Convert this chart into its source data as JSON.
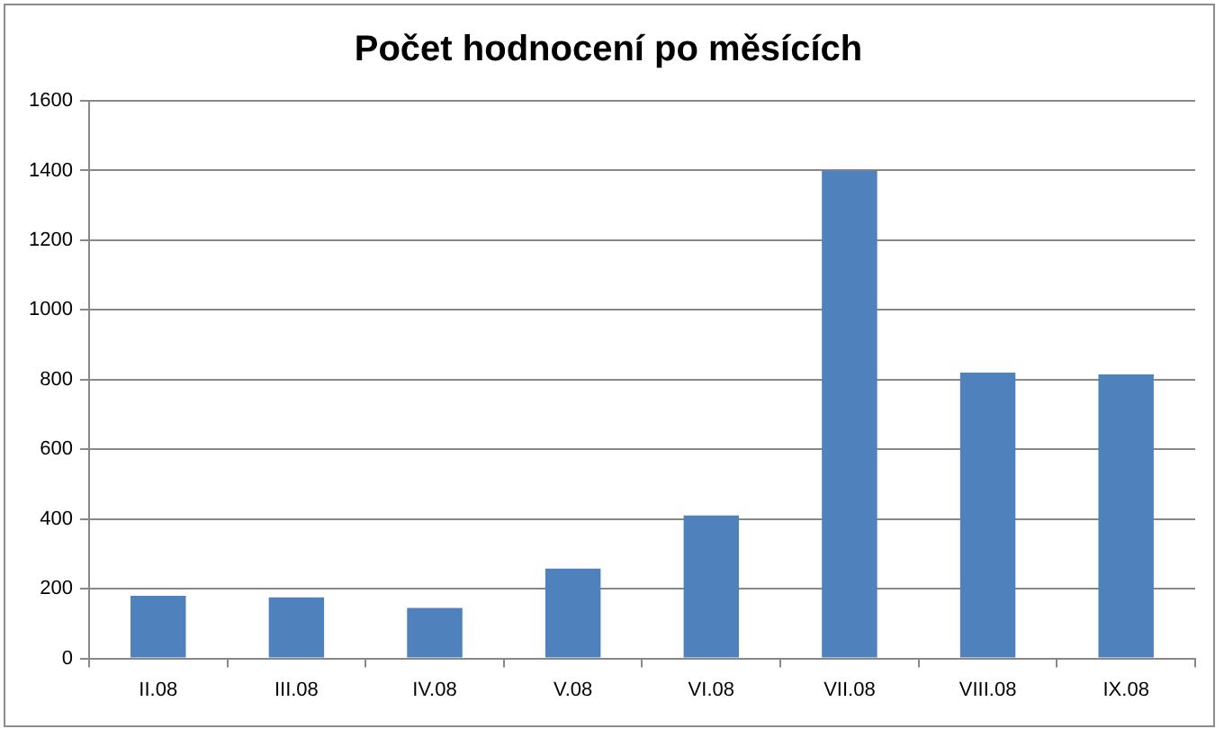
{
  "chart_data": {
    "type": "bar",
    "title": "Počet hodnocení po měsících",
    "categories": [
      "II.08",
      "III.08",
      "IV.08",
      "V.08",
      "VI.08",
      "VII.08",
      "VIII.08",
      "IX.08"
    ],
    "values": [
      180,
      175,
      145,
      258,
      410,
      1400,
      820,
      815
    ],
    "color": "#4f81bd",
    "ylim": [
      0,
      1600
    ],
    "yticks": [
      0,
      200,
      400,
      600,
      800,
      1000,
      1200,
      1400,
      1600
    ],
    "grid": "y"
  }
}
